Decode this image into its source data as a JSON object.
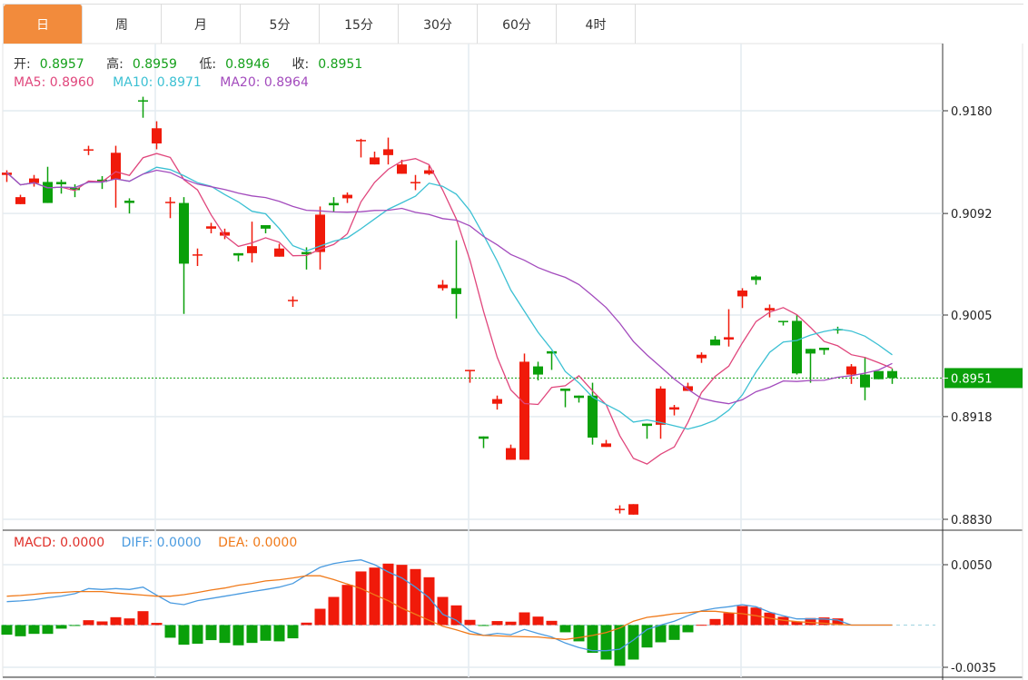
{
  "tabs": [
    "日",
    "周",
    "月",
    "5分",
    "15分",
    "30分",
    "60分",
    "4时"
  ],
  "active_tab": 0,
  "ohlc_legend": {
    "open_label": "开:",
    "open": "0.8957",
    "high_label": "高:",
    "high": "0.8959",
    "low_label": "低:",
    "low": "0.8946",
    "close_label": "收:",
    "close": "0.8951"
  },
  "ma_legend": {
    "ma5": "MA5: 0.8960",
    "ma10": "MA10: 0.8971",
    "ma20": "MA20: 0.8964"
  },
  "macd_legend": {
    "macd": "MACD: 0.0000",
    "diff": "DIFF: 0.0000",
    "dea": "DEA: 0.0000"
  },
  "last_price": "0.8951",
  "colors": {
    "up": "#f01a0a",
    "down": "#0aa00a",
    "ma5": "#e0467c",
    "ma10": "#3bc0d3",
    "ma20": "#a34bbd",
    "macd": "#e0302a",
    "diff": "#4a9be0",
    "dea": "#f07a1a",
    "tab_active": "#f28b3c"
  },
  "chart_data": {
    "type": "candlestick",
    "price_axis": {
      "ticks": [
        "0.9180",
        "0.9092",
        "0.9005",
        "0.8918",
        "0.8830"
      ],
      "range": [
        0.883,
        0.918
      ]
    },
    "macd_axis": {
      "ticks": [
        "0.0050",
        "-0.0035"
      ],
      "range": [
        -0.0035,
        0.005
      ]
    },
    "ma_periods": [
      5,
      10,
      20
    ],
    "candles": [
      [
        0.9125,
        0.9129,
        0.9119,
        0.9127
      ],
      [
        0.91,
        0.9108,
        0.91,
        0.9106
      ],
      [
        0.9118,
        0.9125,
        0.9115,
        0.9122
      ],
      [
        0.9119,
        0.9132,
        0.9101,
        0.9101
      ],
      [
        0.9119,
        0.9121,
        0.9109,
        0.9117
      ],
      [
        0.9114,
        0.9117,
        0.9106,
        0.9112
      ],
      [
        0.9146,
        0.915,
        0.9142,
        0.9147
      ],
      [
        0.9121,
        0.9124,
        0.9113,
        0.9119
      ],
      [
        0.9121,
        0.915,
        0.9097,
        0.9144
      ],
      [
        0.9103,
        0.9105,
        0.9092,
        0.9101
      ],
      [
        0.9189,
        0.9192,
        0.9174,
        0.9188
      ],
      [
        0.9152,
        0.9171,
        0.9147,
        0.9165
      ],
      [
        0.9101,
        0.9106,
        0.9088,
        0.9102
      ],
      [
        0.9101,
        0.9106,
        0.9006,
        0.9049
      ],
      [
        0.9056,
        0.9062,
        0.9047,
        0.9057
      ],
      [
        0.9079,
        0.9084,
        0.9075,
        0.9081
      ],
      [
        0.9073,
        0.9079,
        0.907,
        0.9076
      ],
      [
        0.9058,
        0.9058,
        0.9051,
        0.9056
      ],
      [
        0.9058,
        0.9085,
        0.905,
        0.9064
      ],
      [
        0.9082,
        0.9082,
        0.9075,
        0.9079
      ],
      [
        0.9055,
        0.9066,
        0.9055,
        0.9062
      ],
      [
        0.9017,
        0.9021,
        0.9012,
        0.9018
      ],
      [
        0.9059,
        0.9063,
        0.9044,
        0.9057
      ],
      [
        0.9059,
        0.9098,
        0.9044,
        0.9091
      ],
      [
        0.9101,
        0.9106,
        0.9093,
        0.9099
      ],
      [
        0.9105,
        0.911,
        0.9101,
        0.9108
      ],
      [
        0.9154,
        0.9156,
        0.914,
        0.9155
      ],
      [
        0.9134,
        0.9145,
        0.9134,
        0.914
      ],
      [
        0.9142,
        0.9157,
        0.9134,
        0.9147
      ],
      [
        0.9126,
        0.9138,
        0.9126,
        0.9134
      ],
      [
        0.9118,
        0.9125,
        0.9112,
        0.9119
      ],
      [
        0.9126,
        0.9133,
        0.9125,
        0.9129
      ],
      [
        0.9028,
        0.9035,
        0.9026,
        0.9031
      ],
      [
        0.9028,
        0.9069,
        0.9002,
        0.9023
      ],
      [
        0.8957,
        0.8958,
        0.8947,
        0.8958
      ],
      [
        0.8901,
        0.8901,
        0.8891,
        0.8899
      ],
      [
        0.8929,
        0.8936,
        0.8924,
        0.8933
      ],
      [
        0.8881,
        0.8894,
        0.8881,
        0.8891
      ],
      [
        0.8881,
        0.8972,
        0.8881,
        0.8965
      ],
      [
        0.8961,
        0.8965,
        0.8949,
        0.8954
      ],
      [
        0.8974,
        0.8974,
        0.8958,
        0.8972
      ],
      [
        0.8942,
        0.8942,
        0.8926,
        0.894
      ],
      [
        0.8936,
        0.8936,
        0.893,
        0.8934
      ],
      [
        0.8936,
        0.8947,
        0.8894,
        0.89
      ],
      [
        0.8892,
        0.8898,
        0.8892,
        0.8895
      ],
      [
        0.8838,
        0.8842,
        0.8835,
        0.8839
      ],
      [
        0.8834,
        0.8843,
        0.8834,
        0.8843
      ],
      [
        0.8912,
        0.8912,
        0.8899,
        0.891
      ],
      [
        0.8911,
        0.8944,
        0.8899,
        0.8942
      ],
      [
        0.8924,
        0.8928,
        0.8919,
        0.8926
      ],
      [
        0.894,
        0.8947,
        0.894,
        0.8944
      ],
      [
        0.8968,
        0.8973,
        0.8964,
        0.8971
      ],
      [
        0.8984,
        0.8987,
        0.8979,
        0.8979
      ],
      [
        0.8984,
        0.901,
        0.8978,
        0.8986
      ],
      [
        0.9021,
        0.9028,
        0.9011,
        0.9026
      ],
      [
        0.9038,
        0.9039,
        0.9031,
        0.9035
      ],
      [
        0.9009,
        0.9014,
        0.9003,
        0.9011
      ],
      [
        0.9,
        0.9,
        0.8996,
        0.8999
      ],
      [
        0.9,
        0.9005,
        0.8954,
        0.8955
      ],
      [
        0.8976,
        0.8976,
        0.8947,
        0.8972
      ],
      [
        0.8977,
        0.8977,
        0.8971,
        0.8975
      ],
      [
        0.8993,
        0.8995,
        0.8989,
        0.8992
      ],
      [
        0.8954,
        0.8963,
        0.8946,
        0.8961
      ],
      [
        0.8954,
        0.8969,
        0.8932,
        0.8943
      ],
      [
        0.8957,
        0.8957,
        0.895,
        0.895
      ],
      [
        0.8957,
        0.8959,
        0.8946,
        0.8951
      ]
    ],
    "macd": [
      -0.0008,
      -0.00093,
      -0.00073,
      -0.00073,
      -0.0003,
      -5e-05,
      0.0004,
      0.0003,
      0.00065,
      0.00055,
      0.00115,
      0.00018,
      -0.00105,
      -0.00163,
      -0.00155,
      -0.00125,
      -0.00148,
      -0.00168,
      -0.00148,
      -0.0013,
      -0.00135,
      -0.0011,
      0.0002,
      0.00135,
      0.00233,
      0.00333,
      0.00444,
      0.00476,
      0.00509,
      0.00499,
      0.00464,
      0.00396,
      0.00233,
      0.00163,
      0.00043,
      -3e-05,
      0.00033,
      0.00028,
      0.00105,
      0.0007,
      0.00035,
      -0.0006,
      -0.00135,
      -0.0023,
      -0.00286,
      -0.00338,
      -0.00286,
      -0.00186,
      -0.00143,
      -0.00123,
      -0.0006,
      2e-05,
      0.0005,
      0.001,
      0.00158,
      0.00145,
      0.00103,
      0.00068,
      0.0003,
      0.00058,
      0.00063,
      0.00055,
      0,
      0,
      0,
      0
    ],
    "diff": [
      0.00194,
      0.002,
      0.0021,
      0.00226,
      0.0024,
      0.0026,
      0.00302,
      0.00295,
      0.00302,
      0.00295,
      0.00314,
      0.00247,
      0.00184,
      0.00169,
      0.00202,
      0.0022,
      0.00239,
      0.00258,
      0.00277,
      0.00295,
      0.00314,
      0.00344,
      0.00414,
      0.00478,
      0.0051,
      0.00528,
      0.0054,
      0.005,
      0.0044,
      0.0039,
      0.00314,
      0.00226,
      0.00089,
      0.0004,
      -0.00049,
      -0.00086,
      -0.00069,
      -0.0008,
      -0.00036,
      -0.0007,
      -0.00099,
      -0.00149,
      -0.00187,
      -0.00212,
      -0.00212,
      -0.002,
      -0.00124,
      -0.00036,
      0,
      0.00032,
      0.00077,
      0.00119,
      0.00139,
      0.00152,
      0.00169,
      0.00152,
      0.00107,
      0.00077,
      0.00051,
      0.00051,
      0.0005,
      0.00041,
      0,
      0,
      0,
      0
    ],
    "dea": [
      0.00239,
      0.00245,
      0.00255,
      0.00265,
      0.0027,
      0.00277,
      0.00277,
      0.00277,
      0.00265,
      0.00257,
      0.00248,
      0.00239,
      0.00239,
      0.00252,
      0.0027,
      0.0029,
      0.00307,
      0.0033,
      0.00345,
      0.00365,
      0.00375,
      0.0039,
      0.00408,
      0.00408,
      0.00377,
      0.0034,
      0.00302,
      0.0025,
      0.00202,
      0.0014,
      0.00089,
      0.0004,
      -0.0001,
      -0.0004,
      -0.00074,
      -0.00086,
      -0.0009,
      -0.00094,
      -0.00097,
      -0.00099,
      -0.0011,
      -0.00119,
      -0.00104,
      -0.00086,
      -0.00062,
      -0.00024,
      0.00032,
      0.00064,
      0.00077,
      0.00094,
      0.00102,
      0.00114,
      0.00114,
      0.00102,
      0.00094,
      0.00077,
      0.00057,
      0.0004,
      0.00028,
      0.00021,
      0.00015,
      5e-05,
      0,
      0,
      0,
      0
    ]
  }
}
